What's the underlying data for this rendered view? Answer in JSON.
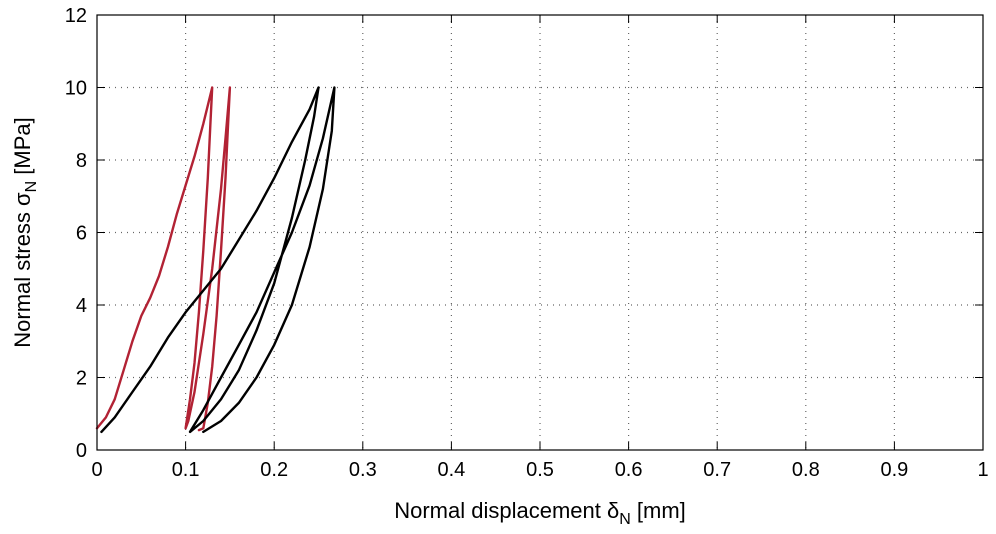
{
  "chart_data": {
    "type": "line",
    "xlabel": {
      "main": "Normal displacement ",
      "symbol": "δ",
      "subscript": "N",
      "unit": " [mm]"
    },
    "ylabel": {
      "main": "Normal stress ",
      "symbol": "σ",
      "subscript": "N",
      "unit": " [MPa]"
    },
    "xlim": [
      0,
      1
    ],
    "ylim": [
      0,
      12
    ],
    "xticks": [
      0,
      0.1,
      0.2,
      0.3,
      0.4,
      0.5,
      0.6,
      0.7,
      0.8,
      0.9,
      1
    ],
    "xtick_labels": [
      "0",
      "0.1",
      "0.2",
      "0.3",
      "0.4",
      "0.5",
      "0.6",
      "0.7",
      "0.8",
      "0.9",
      "1"
    ],
    "yticks": [
      0,
      2,
      4,
      6,
      8,
      10,
      12
    ],
    "ytick_labels": [
      "0",
      "2",
      "4",
      "6",
      "8",
      "10",
      "12"
    ],
    "grid": true,
    "series": [
      {
        "color": "#b22234",
        "points": [
          [
            0.0,
            0.6
          ],
          [
            0.01,
            0.9
          ],
          [
            0.02,
            1.4
          ],
          [
            0.03,
            2.2
          ],
          [
            0.04,
            3.0
          ],
          [
            0.05,
            3.7
          ],
          [
            0.06,
            4.2
          ],
          [
            0.07,
            4.8
          ],
          [
            0.08,
            5.6
          ],
          [
            0.09,
            6.5
          ],
          [
            0.1,
            7.3
          ],
          [
            0.11,
            8.1
          ],
          [
            0.12,
            9.0
          ],
          [
            0.13,
            10.0
          ],
          [
            0.128,
            9.0
          ],
          [
            0.125,
            7.5
          ],
          [
            0.12,
            5.5
          ],
          [
            0.115,
            3.8
          ],
          [
            0.11,
            2.4
          ],
          [
            0.105,
            1.4
          ],
          [
            0.1,
            0.6
          ],
          [
            0.103,
            0.8
          ],
          [
            0.11,
            1.6
          ],
          [
            0.12,
            3.2
          ],
          [
            0.13,
            5.0
          ],
          [
            0.14,
            7.2
          ],
          [
            0.145,
            8.6
          ],
          [
            0.15,
            10.0
          ],
          [
            0.148,
            9.0
          ],
          [
            0.145,
            7.5
          ],
          [
            0.14,
            5.5
          ],
          [
            0.135,
            3.7
          ],
          [
            0.13,
            2.3
          ],
          [
            0.125,
            1.3
          ],
          [
            0.12,
            0.6
          ],
          [
            0.115,
            0.55
          ]
        ]
      },
      {
        "color": "#000000",
        "points": [
          [
            0.005,
            0.5
          ],
          [
            0.02,
            0.9
          ],
          [
            0.04,
            1.6
          ],
          [
            0.06,
            2.3
          ],
          [
            0.08,
            3.1
          ],
          [
            0.1,
            3.8
          ],
          [
            0.12,
            4.4
          ],
          [
            0.14,
            5.0
          ],
          [
            0.16,
            5.8
          ],
          [
            0.18,
            6.6
          ],
          [
            0.2,
            7.5
          ],
          [
            0.22,
            8.5
          ],
          [
            0.24,
            9.4
          ],
          [
            0.25,
            10.0
          ],
          [
            0.245,
            9.2
          ],
          [
            0.235,
            8.0
          ],
          [
            0.22,
            6.4
          ],
          [
            0.2,
            4.6
          ],
          [
            0.18,
            3.3
          ],
          [
            0.16,
            2.2
          ],
          [
            0.14,
            1.4
          ],
          [
            0.12,
            0.8
          ],
          [
            0.105,
            0.5
          ],
          [
            0.12,
            1.1
          ],
          [
            0.14,
            2.0
          ],
          [
            0.16,
            2.9
          ],
          [
            0.18,
            3.8
          ],
          [
            0.2,
            4.9
          ],
          [
            0.22,
            6.0
          ],
          [
            0.24,
            7.3
          ],
          [
            0.255,
            8.6
          ],
          [
            0.268,
            10.0
          ],
          [
            0.265,
            8.8
          ],
          [
            0.255,
            7.2
          ],
          [
            0.24,
            5.6
          ],
          [
            0.22,
            4.0
          ],
          [
            0.2,
            2.9
          ],
          [
            0.18,
            2.0
          ],
          [
            0.16,
            1.3
          ],
          [
            0.14,
            0.8
          ],
          [
            0.12,
            0.5
          ]
        ]
      }
    ]
  }
}
